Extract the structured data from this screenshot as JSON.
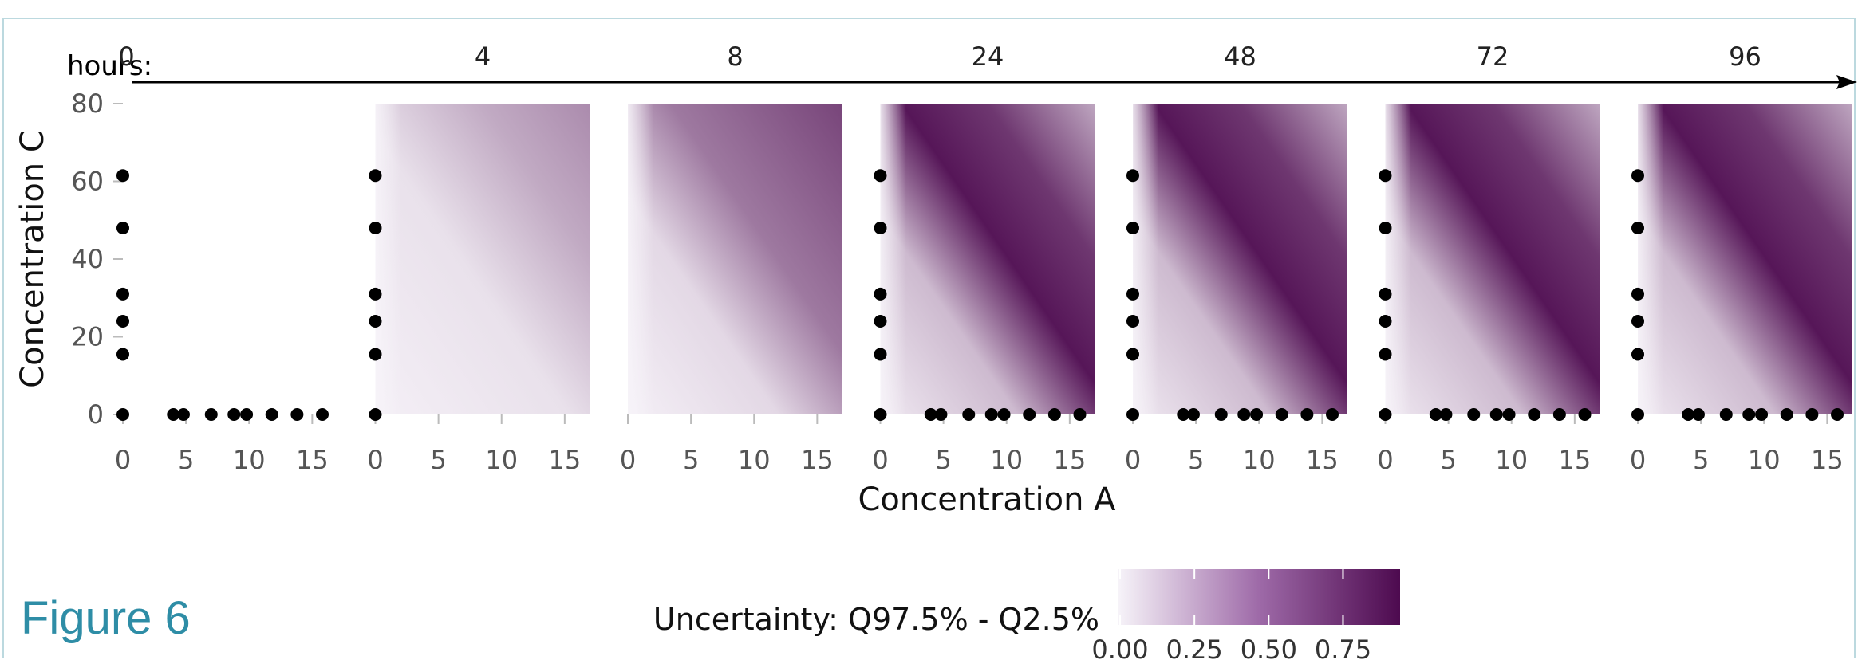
{
  "figure_label": "Figure 6",
  "chart_data": {
    "type": "heatmap",
    "timeline_label": "hours:",
    "panels": [
      "0",
      "4",
      "8",
      "24",
      "48",
      "72",
      "96"
    ],
    "xlabel": "Concentration A",
    "ylabel": "Concentration C",
    "xlim": [
      0,
      17
    ],
    "ylim": [
      0,
      80
    ],
    "x_ticks": [
      "0",
      "5",
      "10",
      "15"
    ],
    "y_ticks": [
      "0",
      "20",
      "40",
      "60",
      "80"
    ],
    "intensity_max": [
      0.0,
      0.45,
      0.75,
      0.95,
      0.95,
      0.95,
      0.95
    ],
    "design_points": {
      "a_zero_c": [
        0,
        15.5,
        24,
        31,
        48,
        61.5
      ],
      "c_zero_a": [
        4,
        4.8,
        7,
        8.8,
        9.8,
        11.8,
        13.8,
        15.8
      ]
    },
    "points_shown_in_panel": [
      true,
      true,
      false,
      true,
      true,
      true,
      true
    ],
    "bottom_points_shown_in_panel": [
      true,
      false,
      false,
      true,
      true,
      true,
      true
    ],
    "legend": {
      "title": "Uncertainty: Q97.5% - Q2.5%",
      "ticks": [
        "0.00",
        "0.25",
        "0.50",
        "0.75"
      ],
      "colors": [
        "#f7f4f9",
        "#4d0a4f"
      ]
    }
  }
}
